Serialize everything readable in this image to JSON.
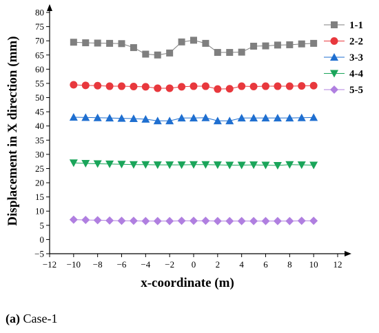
{
  "chart_data": {
    "type": "line",
    "xlabel": "x-coordinate (m)",
    "ylabel": "Displacement in X direction (mm)",
    "xlim": [
      -12,
      12
    ],
    "ylim": [
      -5,
      80
    ],
    "xticks": [
      -12,
      -10,
      -8,
      -6,
      -4,
      -2,
      0,
      2,
      4,
      6,
      8,
      10,
      12
    ],
    "yticks": [
      -5,
      0,
      5,
      10,
      15,
      20,
      25,
      30,
      35,
      40,
      45,
      50,
      55,
      60,
      65,
      70,
      75,
      80
    ],
    "grid": false,
    "legend_position": "top-right",
    "x": [
      -10,
      -9,
      -8,
      -7,
      -6,
      -5,
      -4,
      -3,
      -2,
      -1,
      0,
      1,
      2,
      3,
      4,
      5,
      6,
      7,
      8,
      9,
      10
    ],
    "series": [
      {
        "name": "1-1",
        "color": "#7f7f7f",
        "marker": "square",
        "values": [
          69.5,
          69.3,
          69.2,
          69.1,
          69.0,
          67.6,
          65.3,
          65.0,
          65.7,
          69.6,
          70.2,
          69.1,
          65.9,
          65.9,
          66.0,
          68.1,
          68.2,
          68.5,
          68.6,
          68.9,
          69.1
        ]
      },
      {
        "name": "2-2",
        "color": "#e8383d",
        "marker": "circle",
        "values": [
          54.5,
          54.3,
          54.2,
          54.0,
          54.0,
          53.9,
          53.8,
          53.3,
          53.3,
          53.8,
          54.0,
          54.0,
          53.0,
          53.1,
          54.0,
          53.9,
          54.0,
          54.0,
          54.0,
          54.1,
          54.2
        ]
      },
      {
        "name": "3-3",
        "color": "#1f6fd0",
        "marker": "triangle-up",
        "values": [
          43.1,
          43.0,
          42.9,
          42.8,
          42.7,
          42.6,
          42.4,
          41.8,
          41.8,
          42.8,
          42.8,
          42.9,
          41.8,
          41.8,
          42.8,
          42.8,
          42.8,
          42.8,
          42.8,
          42.9,
          43.0
        ]
      },
      {
        "name": "4-4",
        "color": "#1aa55a",
        "marker": "triangle-down",
        "values": [
          27.0,
          26.8,
          26.7,
          26.6,
          26.5,
          26.4,
          26.4,
          26.3,
          26.3,
          26.3,
          26.4,
          26.4,
          26.3,
          26.2,
          26.2,
          26.3,
          26.2,
          26.1,
          26.4,
          26.3,
          26.2
        ]
      },
      {
        "name": "5-5",
        "color": "#b07fe0",
        "marker": "diamond",
        "values": [
          7.0,
          6.9,
          6.8,
          6.7,
          6.6,
          6.6,
          6.5,
          6.5,
          6.5,
          6.6,
          6.6,
          6.6,
          6.5,
          6.5,
          6.5,
          6.5,
          6.5,
          6.5,
          6.5,
          6.6,
          6.6
        ]
      }
    ]
  },
  "caption": {
    "label": "(a)",
    "text": " Case-1"
  }
}
